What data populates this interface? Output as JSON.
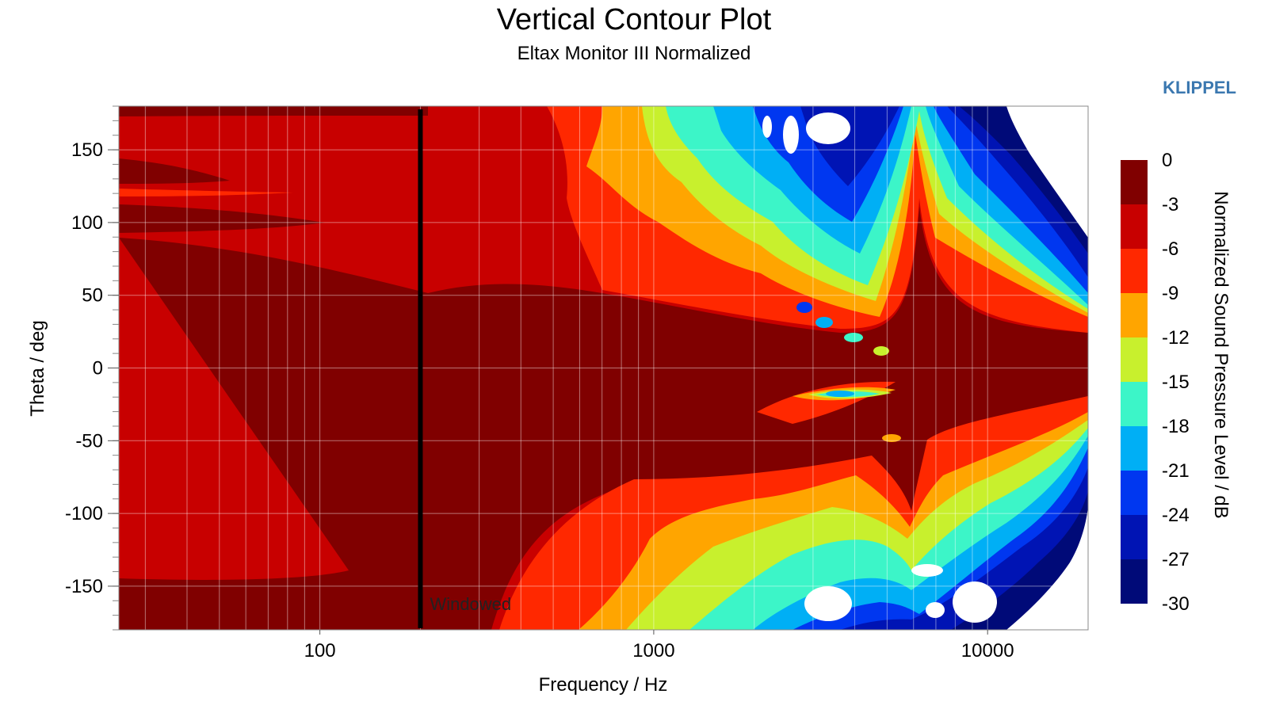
{
  "header": {
    "title": "Vertical Contour Plot",
    "subtitle": "Eltax Monitor III Normalized",
    "brand": "KLIPPEL"
  },
  "chart_data": {
    "type": "heatmap",
    "title": "Vertical Contour Plot",
    "subtitle": "Eltax Monitor III Normalized",
    "xlabel": "Frequency / Hz",
    "ylabel": "Theta / deg",
    "x_scale": "log",
    "xlim": [
      25,
      20000
    ],
    "ylim": [
      -180,
      180
    ],
    "x_ticks": [
      {
        "value": 100,
        "label": "100"
      },
      {
        "value": 1000,
        "label": "1000"
      },
      {
        "value": 10000,
        "label": "10000"
      }
    ],
    "y_ticks": [
      {
        "value": 150,
        "label": "150"
      },
      {
        "value": 100,
        "label": "100"
      },
      {
        "value": 50,
        "label": "50"
      },
      {
        "value": 0,
        "label": "0"
      },
      {
        "value": -50,
        "label": "-50"
      },
      {
        "value": -100,
        "label": "-100"
      },
      {
        "value": -150,
        "label": "-150"
      }
    ],
    "grid": true,
    "colorbar": {
      "label": "Normalized Sound Pressure Level / dB",
      "placement": "right",
      "levels": [
        0,
        -3,
        -6,
        -9,
        -12,
        -15,
        -18,
        -21,
        -24,
        -27,
        -30
      ],
      "level_labels": [
        "0",
        "-3",
        "-6",
        "-9",
        "-12",
        "-15",
        "-18",
        "-21",
        "-24",
        "-27",
        "-30"
      ],
      "colors": [
        "#800000",
        "#c80000",
        "#ff2800",
        "#ffa500",
        "#c8f02d",
        "#3cf5c8",
        "#00aff5",
        "#0037f0",
        "#0014b4",
        "#000a78"
      ]
    },
    "annotation": {
      "text": "Windowed",
      "frequency_hz": 200
    }
  }
}
